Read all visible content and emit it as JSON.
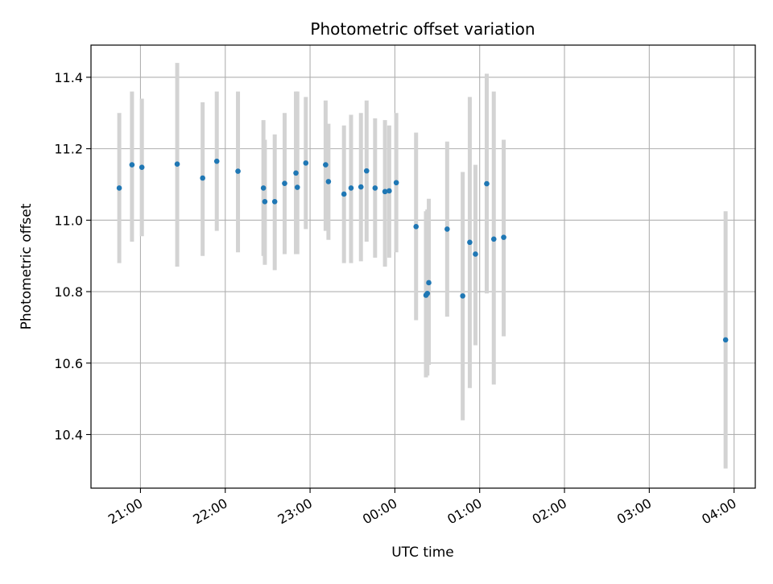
{
  "chart_data": {
    "type": "scatter",
    "title": "Photometric offset variation",
    "xlabel": "UTC time",
    "ylabel": "Photometric offset",
    "grid": true,
    "x_axis_kind": "time (UTC)",
    "x_range": [
      "20:25",
      "04:15"
    ],
    "x_ticks": [
      "21:00",
      "22:00",
      "23:00",
      "00:00",
      "01:00",
      "02:00",
      "03:00",
      "04:00"
    ],
    "ylim": [
      10.25,
      11.49
    ],
    "y_ticks": [
      "10.4",
      "10.6",
      "10.8",
      "11.0",
      "11.2",
      "11.4"
    ],
    "colors": {
      "marker": "#1f77b4",
      "errorbar": "#d3d3d3",
      "grid": "#b0b0b0"
    },
    "series": [
      {
        "points": [
          {
            "time": "20:45",
            "y": 11.09,
            "lo": 10.88,
            "hi": 11.3
          },
          {
            "time": "20:54",
            "y": 11.155,
            "lo": 10.94,
            "hi": 11.36
          },
          {
            "time": "21:01",
            "y": 11.148,
            "lo": 10.955,
            "hi": 11.34
          },
          {
            "time": "21:26",
            "y": 11.157,
            "lo": 10.87,
            "hi": 11.44
          },
          {
            "time": "21:44",
            "y": 11.118,
            "lo": 10.9,
            "hi": 11.33
          },
          {
            "time": "21:54",
            "y": 11.165,
            "lo": 10.97,
            "hi": 11.36
          },
          {
            "time": "22:09",
            "y": 11.137,
            "lo": 10.91,
            "hi": 11.36
          },
          {
            "time": "22:27",
            "y": 11.09,
            "lo": 10.9,
            "hi": 11.28
          },
          {
            "time": "22:28",
            "y": 11.052,
            "lo": 10.875,
            "hi": 11.225
          },
          {
            "time": "22:35",
            "y": 11.052,
            "lo": 10.86,
            "hi": 11.24
          },
          {
            "time": "22:42",
            "y": 11.103,
            "lo": 10.905,
            "hi": 11.3
          },
          {
            "time": "22:50",
            "y": 11.132,
            "lo": 10.905,
            "hi": 11.36
          },
          {
            "time": "22:51",
            "y": 11.092,
            "lo": 10.905,
            "hi": 11.36
          },
          {
            "time": "22:57",
            "y": 11.16,
            "lo": 10.975,
            "hi": 11.345
          },
          {
            "time": "23:11",
            "y": 11.155,
            "lo": 10.97,
            "hi": 11.335
          },
          {
            "time": "23:13",
            "y": 11.108,
            "lo": 10.945,
            "hi": 11.27
          },
          {
            "time": "23:24",
            "y": 11.073,
            "lo": 10.88,
            "hi": 11.265
          },
          {
            "time": "23:29",
            "y": 11.09,
            "lo": 10.88,
            "hi": 11.295
          },
          {
            "time": "23:36",
            "y": 11.093,
            "lo": 10.885,
            "hi": 11.3
          },
          {
            "time": "23:40",
            "y": 11.138,
            "lo": 10.94,
            "hi": 11.335
          },
          {
            "time": "23:46",
            "y": 11.09,
            "lo": 10.895,
            "hi": 11.285
          },
          {
            "time": "23:53",
            "y": 11.08,
            "lo": 10.87,
            "hi": 11.28
          },
          {
            "time": "23:56",
            "y": 11.082,
            "lo": 10.895,
            "hi": 11.265
          },
          {
            "time": "00:01",
            "y": 11.105,
            "lo": 10.91,
            "hi": 11.3
          },
          {
            "time": "00:15",
            "y": 10.982,
            "lo": 10.72,
            "hi": 11.245
          },
          {
            "time": "00:22",
            "y": 10.79,
            "lo": 10.56,
            "hi": 11.025
          },
          {
            "time": "00:23",
            "y": 10.795,
            "lo": 10.565,
            "hi": 11.03
          },
          {
            "time": "00:24",
            "y": 10.825,
            "lo": 10.595,
            "hi": 11.06
          },
          {
            "time": "00:37",
            "y": 10.975,
            "lo": 10.73,
            "hi": 11.22
          },
          {
            "time": "00:48",
            "y": 10.788,
            "lo": 10.44,
            "hi": 11.135
          },
          {
            "time": "00:53",
            "y": 10.938,
            "lo": 10.53,
            "hi": 11.345
          },
          {
            "time": "00:57",
            "y": 10.905,
            "lo": 10.65,
            "hi": 11.155
          },
          {
            "time": "01:05",
            "y": 11.102,
            "lo": 10.795,
            "hi": 11.41
          },
          {
            "time": "01:10",
            "y": 10.947,
            "lo": 10.54,
            "hi": 11.36
          },
          {
            "time": "01:17",
            "y": 10.952,
            "lo": 10.675,
            "hi": 11.225
          },
          {
            "time": "03:54",
            "y": 10.665,
            "lo": 10.305,
            "hi": 11.025
          }
        ]
      }
    ]
  }
}
